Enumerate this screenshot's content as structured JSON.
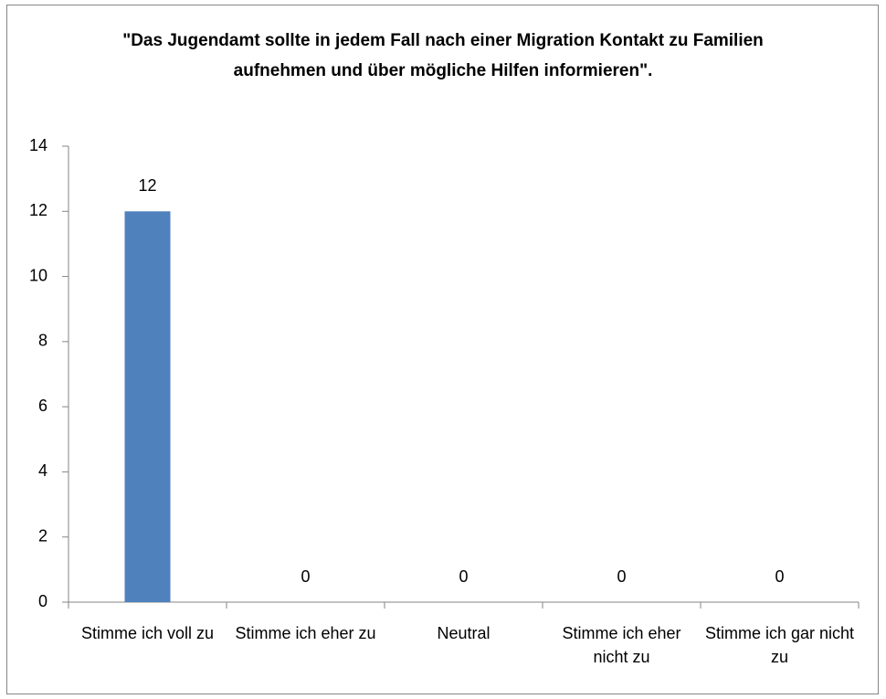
{
  "chart_data": {
    "type": "bar",
    "title": "\"Das Jugendamt sollte in jedem Fall nach einer Migration Kontakt zu Familien aufnehmen und über mögliche Hilfen informieren\".",
    "categories": [
      "Stimme ich voll zu",
      "Stimme ich eher zu",
      "Neutral",
      "Stimme ich eher nicht zu",
      "Stimme ich gar nicht zu"
    ],
    "values": [
      12,
      0,
      0,
      0,
      0
    ],
    "color": "#4f81bd",
    "ylim": [
      0,
      14
    ],
    "yticks": [
      0,
      2,
      4,
      6,
      8,
      10,
      12,
      14
    ],
    "grid": false
  }
}
